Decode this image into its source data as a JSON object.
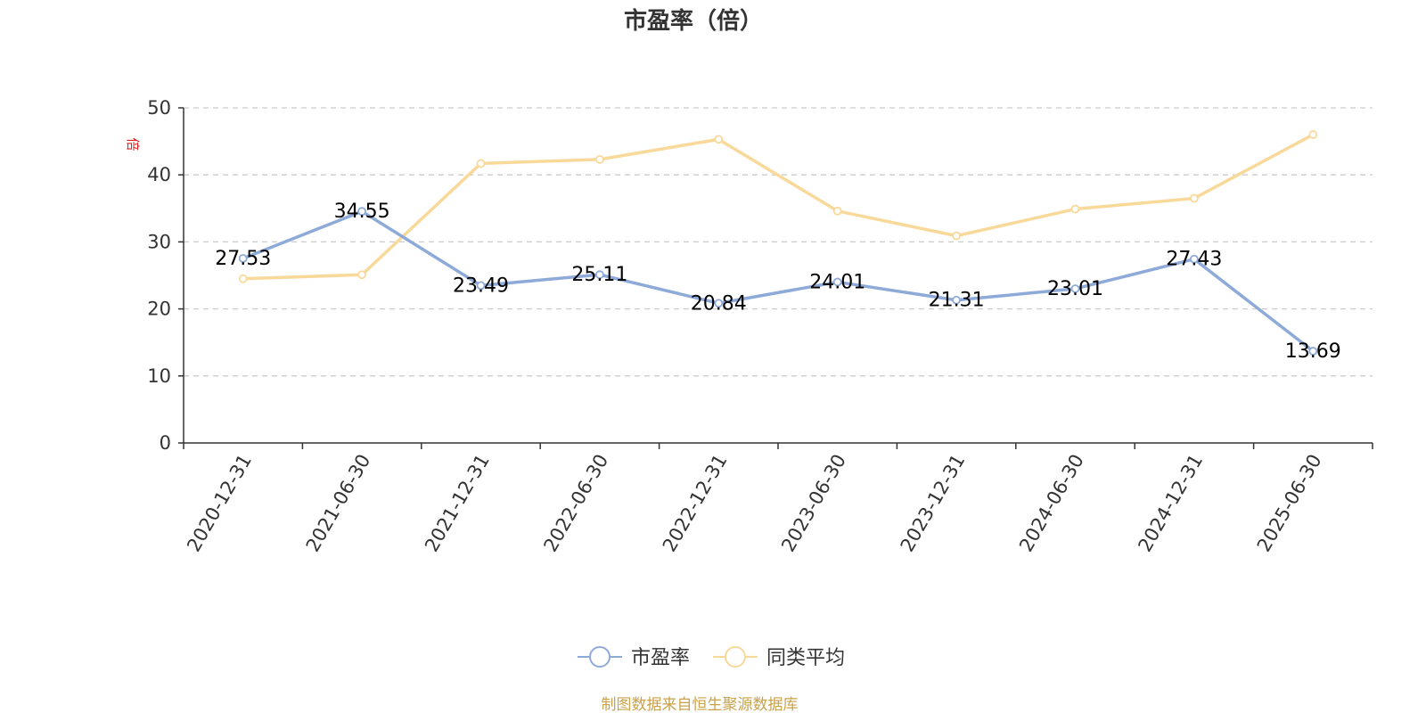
{
  "chart_data": {
    "type": "line",
    "title": "市盈率（倍）",
    "ylabel": "倍",
    "ylim": [
      0,
      50
    ],
    "yticks": [
      0,
      10,
      20,
      30,
      40,
      50
    ],
    "categories": [
      "2020-12-31",
      "2021-06-30",
      "2021-12-31",
      "2022-06-30",
      "2022-12-31",
      "2023-06-30",
      "2023-12-31",
      "2024-06-30",
      "2024-12-31",
      "2025-06-30"
    ],
    "series": [
      {
        "name": "市盈率",
        "color": "#8eaad9",
        "values": [
          27.53,
          34.55,
          23.49,
          25.11,
          20.84,
          24.01,
          21.31,
          23.01,
          27.43,
          13.69
        ],
        "labels": [
          "27.53",
          "34.55",
          "23.49",
          "25.11",
          "20.84",
          "24.01",
          "21.31",
          "23.01",
          "27.43",
          "13.69"
        ]
      },
      {
        "name": "同类平均",
        "color": "#f9d99a",
        "values": [
          24.5,
          25.1,
          41.7,
          42.3,
          45.3,
          34.6,
          30.9,
          34.9,
          36.5,
          46.0
        ]
      }
    ],
    "grid": true,
    "legend": "bottom-center"
  },
  "unit_color": "#e02020",
  "source": {
    "text": "制图数据来自恒生聚源数据库",
    "color": "#c9a24a"
  }
}
